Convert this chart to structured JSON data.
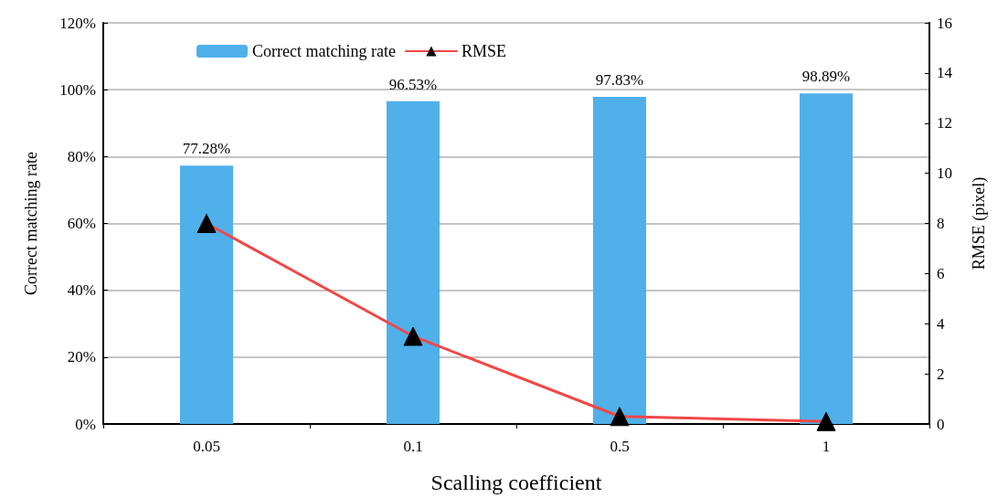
{
  "chart_data": {
    "type": "bar",
    "xlabel": "Scalling coefficient",
    "ylabel": "Correct matching rate",
    "y2label": "RMSE (pixel)",
    "categories": [
      "0.05",
      "0.1",
      "0.5",
      "1"
    ],
    "series": [
      {
        "name": "Correct matching rate",
        "color": "#4fb0ea",
        "values": [
          77.28,
          96.53,
          97.83,
          98.89
        ],
        "value_labels": [
          "77.28%",
          "96.53%",
          "97.83%",
          "98.89%"
        ]
      },
      {
        "name": "RMSE",
        "type": "line",
        "axis": "y2",
        "color": "#f04848",
        "values": [
          8.0,
          3.5,
          0.3,
          0.1
        ],
        "marker": "triangle"
      }
    ],
    "ylim": [
      0,
      120
    ],
    "yticks": [
      {
        "value": 0,
        "label": "0%"
      },
      {
        "value": 20,
        "label": "20%"
      },
      {
        "value": 40,
        "label": "40%"
      },
      {
        "value": 60,
        "label": "60%"
      },
      {
        "value": 80,
        "label": "80%"
      },
      {
        "value": 100,
        "label": "100%"
      },
      {
        "value": 120,
        "label": "120%"
      }
    ],
    "y2lim": [
      0,
      16
    ],
    "y2ticks": [
      0,
      2,
      4,
      6,
      8,
      10,
      12,
      14,
      16
    ],
    "grid": "y",
    "legend": "top left"
  }
}
